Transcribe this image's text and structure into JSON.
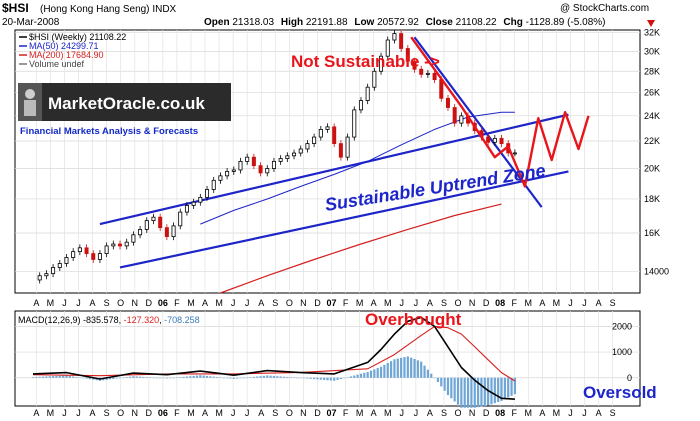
{
  "header": {
    "symbol_title": "$HSI",
    "name": "(Hong Kong Hang Seng)",
    "exchange": "INDX",
    "date": "20-Mar-2008",
    "open_label": "Open",
    "open": "21318.03",
    "high_label": "High",
    "high": "22191.88",
    "low_label": "Low",
    "low": "20572.92",
    "close_label": "Close",
    "close": "21108.22",
    "chg_label": "Chg",
    "chg": "-1128.89 (-5.08%)",
    "copyright": "@ StockCharts.com"
  },
  "legend": [
    {
      "text": "$HSI (Weekly) 21108.22",
      "color": "#000000"
    },
    {
      "text": "MA(50) 24299.71",
      "color": "#1d25c8"
    },
    {
      "text": "MA(200) 17684.90",
      "color": "#d61f1f"
    },
    {
      "text": "Volume undef",
      "color": "#777777"
    }
  ],
  "logo": {
    "text": "MarketOracle.co.uk",
    "tagline": "Financial Markets Analysis & Forecasts"
  },
  "annotations": {
    "not_sustainable": "Not Sustainable ->",
    "uptrend_zone": "Sustainable Uptrend Zone",
    "overbought": "Overbought",
    "oversold": "Oversold"
  },
  "macd_legend": {
    "label": "MACD(12,26,9)",
    "macd": "-835.578",
    "signal": "-127.320",
    "hist": "-708.258"
  },
  "colors": {
    "price": "#000000",
    "up_candle": "#000000",
    "down_candle": "#cc1111",
    "ma50": "#1d25c8",
    "ma200": "#d61f1f",
    "trend": "#1d25c8",
    "projection": "#e8151b",
    "histogram": "#6fa6d6"
  },
  "chart_data": [
    {
      "type": "line",
      "title": "$HSI (Hong Kong Hang Seng) INDX",
      "x_months": [
        "A",
        "M",
        "J",
        "J",
        "A",
        "S",
        "O",
        "N",
        "D",
        "06",
        "F",
        "M",
        "A",
        "M",
        "J",
        "J",
        "A",
        "S",
        "O",
        "N",
        "D",
        "07",
        "F",
        "M",
        "A",
        "M",
        "J",
        "J",
        "A",
        "S",
        "O",
        "N",
        "D",
        "08",
        "F",
        "M",
        "A",
        "M",
        "J",
        "J",
        "A",
        "S"
      ],
      "y_ticks": [
        14000,
        16000,
        18000,
        20000,
        22000,
        24000,
        26000,
        28000,
        30000,
        32000
      ],
      "y_tick_labels": [
        "14000",
        "16K",
        "18K",
        "20K",
        "22K",
        "24K",
        "26K",
        "28K",
        "30K",
        "32K"
      ],
      "ylim": [
        13000,
        32300
      ],
      "y_scale": "log",
      "series": [
        {
          "name": "$HSI (Weekly)",
          "x": [
            0,
            2,
            4,
            6,
            8,
            10,
            12,
            14,
            16,
            18,
            20,
            22,
            24,
            26,
            28,
            30,
            32,
            34,
            36,
            38,
            40,
            42,
            44,
            46,
            48,
            50,
            52,
            54,
            56,
            58,
            60,
            62,
            64,
            66,
            68,
            70,
            72,
            74,
            76,
            78,
            80,
            82,
            84,
            86,
            88,
            90,
            92,
            94,
            96,
            98,
            100,
            102,
            104,
            106,
            108,
            110,
            112,
            114,
            116,
            118,
            120,
            122,
            124,
            126,
            128,
            130,
            132,
            134,
            136,
            138,
            140,
            142,
            144
          ],
          "values": [
            13600,
            13800,
            13900,
            14200,
            14400,
            14700,
            15000,
            15200,
            14900,
            14600,
            14900,
            15300,
            15400,
            15300,
            15500,
            15900,
            16200,
            16700,
            16900,
            16300,
            15800,
            16400,
            17200,
            17600,
            17800,
            18100,
            18600,
            19200,
            19500,
            19800,
            19900,
            20500,
            20800,
            20200,
            19700,
            20000,
            20500,
            20700,
            20900,
            21100,
            21400,
            21800,
            22300,
            22900,
            23100,
            21800,
            20800,
            22300,
            24500,
            25300,
            26500,
            28000,
            29500,
            31200,
            31900,
            30300,
            29000,
            28200,
            27700,
            27800,
            27200,
            25500,
            24700,
            23400,
            24000,
            23400,
            22800,
            22300,
            21900,
            22200,
            21800,
            21108,
            21108
          ]
        },
        {
          "name": "MA(50)",
          "x": [
            50,
            60,
            70,
            80,
            90,
            100,
            110,
            120,
            130,
            140,
            144
          ],
          "values": [
            16500,
            17300,
            18000,
            18800,
            19600,
            20500,
            21700,
            22900,
            23900,
            24300,
            24300
          ]
        },
        {
          "name": "MA(200)",
          "x": [
            56,
            70,
            84,
            98,
            112,
            126,
            140
          ],
          "values": [
            13000,
            13800,
            14600,
            15400,
            16200,
            17000,
            17685
          ]
        }
      ],
      "trendlines": {
        "upper_channel": [
          [
            20,
            16500
          ],
          [
            160,
            24100
          ]
        ],
        "lower_channel": [
          [
            26,
            14200
          ],
          [
            160,
            19800
          ]
        ],
        "downtrend": [
          [
            114,
            31500
          ],
          [
            152,
            17500
          ]
        ]
      },
      "projection": {
        "x": [
          113,
          128,
          138,
          142,
          147,
          151,
          155,
          159,
          163,
          166
        ],
        "values": [
          31500,
          24800,
          20800,
          21600,
          18800,
          23800,
          20600,
          24300,
          21400,
          24000
        ]
      }
    },
    {
      "type": "line",
      "title": "MACD(12,26,9)",
      "y_ticks": [
        0,
        1000,
        2000
      ],
      "y_tick_labels": [
        "0",
        "1000",
        "2000"
      ],
      "ylim": [
        -1100,
        2600
      ],
      "series": [
        {
          "name": "MACD",
          "x": [
            0,
            10,
            20,
            30,
            40,
            50,
            60,
            70,
            80,
            90,
            100,
            104,
            108,
            112,
            116,
            120,
            124,
            128,
            132,
            136,
            140,
            144
          ],
          "values": [
            150,
            200,
            -50,
            180,
            120,
            260,
            100,
            280,
            200,
            150,
            600,
            1100,
            1700,
            2200,
            2350,
            2000,
            1200,
            400,
            -100,
            -500,
            -800,
            -836
          ]
        },
        {
          "name": "Signal",
          "x": [
            0,
            20,
            40,
            60,
            80,
            100,
            108,
            116,
            120,
            124,
            128,
            132,
            136,
            140,
            144
          ],
          "values": [
            120,
            80,
            150,
            150,
            210,
            350,
            900,
            1650,
            2000,
            1950,
            1700,
            1200,
            700,
            200,
            -127
          ]
        }
      ]
    }
  ]
}
